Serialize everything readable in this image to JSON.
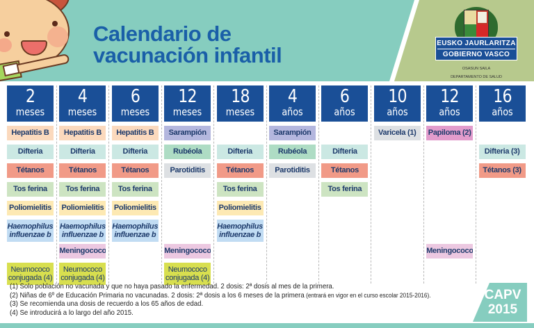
{
  "header": {
    "title_line1": "Calendario de",
    "title_line2": "vacunación infantil",
    "colors": {
      "teal": "#86cdbf",
      "green": "#b7c98d",
      "title_blue": "#1a5fa8"
    }
  },
  "logo": {
    "line1": "EUSKO JAURLARITZA",
    "line2": "GOBIERNO VASCO",
    "sub1": "OSASUN SAILA",
    "sub2": "DEPARTAMENTO DE SALUD"
  },
  "colors": {
    "age_header": "#1a4f97",
    "hepatitis": "#fbd9bd",
    "difteria": "#cbe8e3",
    "tetanos": "#f19a87",
    "tosferina": "#cde4c2",
    "polio": "#fde9b3",
    "haemophilus": "#c1dcf3",
    "meningococo": "#ecc8e1",
    "neumococo": "#d8df4f",
    "sarampion": "#b4b7de",
    "rubeola": "#aedcc4",
    "parotiditis": "#dde0e3",
    "varicela": "#dde0e3",
    "papiloma": "#e29ccc"
  },
  "columns": [
    {
      "num": "2",
      "unit": "meses",
      "vaccines": [
        "Hepatitis B",
        "Difteria",
        "Tétanos",
        "Tos ferina",
        "Poliomielitis",
        "Haemophilus influenzae b",
        "",
        "Neumococo conjugada (4)"
      ]
    },
    {
      "num": "4",
      "unit": "meses",
      "vaccines": [
        "Hepatitis B",
        "Difteria",
        "Tétanos",
        "Tos ferina",
        "Poliomielitis",
        "Haemophilus influenzae b",
        "Meningococo C",
        "Neumococo conjugada (4)"
      ]
    },
    {
      "num": "6",
      "unit": "meses",
      "vaccines": [
        "Hepatitis B",
        "Difteria",
        "Tétanos",
        "Tos ferina",
        "Poliomielitis",
        "Haemophilus influenzae b",
        "",
        ""
      ]
    },
    {
      "num": "12",
      "unit": "meses",
      "vaccines": [
        "Sarampión",
        "Rubéola",
        "Parotiditis",
        "",
        "",
        "",
        "Meningococo C",
        "Neumococo conjugada (4)"
      ]
    },
    {
      "num": "18",
      "unit": "meses",
      "vaccines": [
        "",
        "Difteria",
        "Tétanos",
        "Tos ferina",
        "Poliomielitis",
        "Haemophilus influenzae b",
        "",
        ""
      ]
    },
    {
      "num": "4",
      "unit": "años",
      "vaccines": [
        "Sarampión",
        "Rubéola",
        "Parotiditis",
        "",
        "",
        "",
        "",
        ""
      ]
    },
    {
      "num": "6",
      "unit": "años",
      "vaccines": [
        "",
        "Difteria",
        "Tétanos",
        "Tos ferina",
        "",
        "",
        "",
        ""
      ]
    },
    {
      "num": "10",
      "unit": "años",
      "vaccines": [
        "Varicela (1)",
        "",
        "",
        "",
        "",
        "",
        "",
        ""
      ]
    },
    {
      "num": "12",
      "unit": "años",
      "vaccines": [
        "Papiloma (2)",
        "",
        "",
        "",
        "",
        "",
        "Meningococo C",
        ""
      ]
    },
    {
      "num": "16",
      "unit": "años",
      "vaccines": [
        "",
        "Difteria (3)",
        "Tétanos (3)",
        "",
        "",
        "",
        "",
        ""
      ]
    }
  ],
  "haemophilus": {
    "line1": "Haemophilus",
    "line2": "influenzae b"
  },
  "neumococo": {
    "line1": "Neumococo",
    "line2": "conjugada (4)"
  },
  "footnotes": {
    "n1": "(1) Solo población no vacunada y que no haya pasado la enfermedad. 2 dosis: 2ª dosis al mes de la primera.",
    "n2": "(2) Niñas de 6º de Educación Primaria no vacunadas. 2 dosis: 2ª dosis a los 6 meses de la primera",
    "n2_small": " (entrará en vigor en el curso escolar 2015-2016).",
    "n3": "(3) Se recomienda una dosis de recuerdo a los 65 años de edad.",
    "n4": "(4) Se introducirá a lo largo del año 2015."
  },
  "badge": {
    "line1": "CAPV",
    "line2": "2015"
  }
}
